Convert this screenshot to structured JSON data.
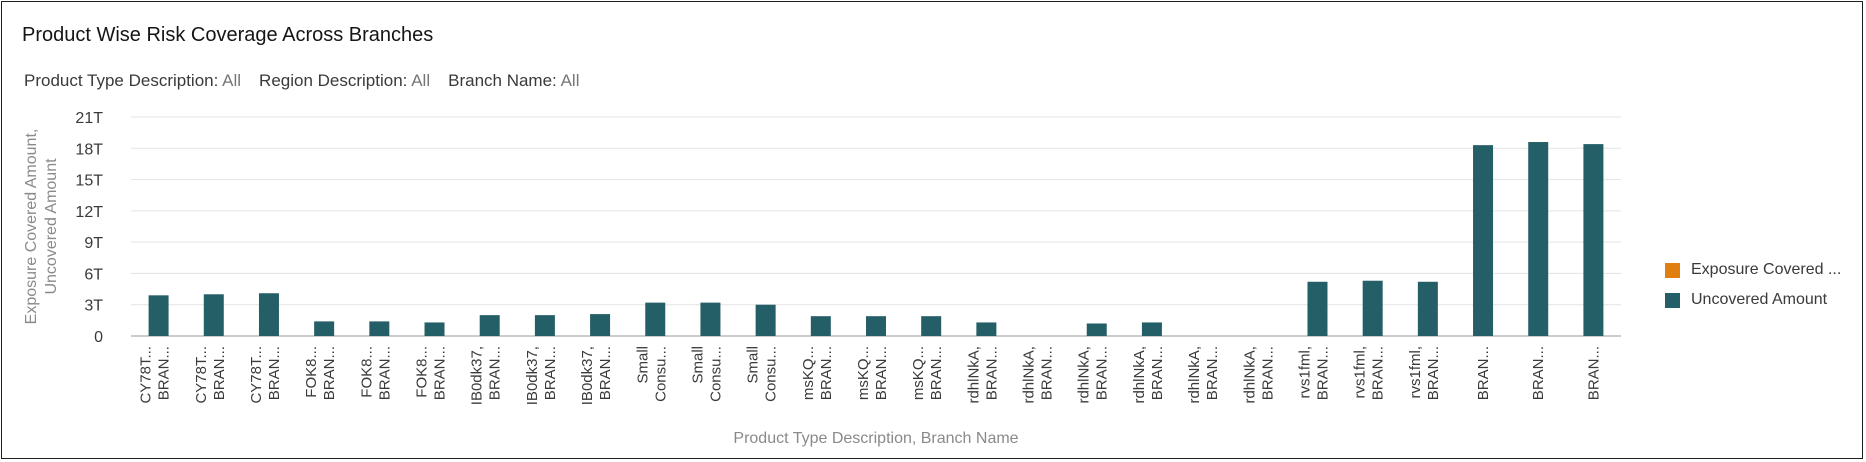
{
  "title": "Product Wise Risk Coverage Across Branches",
  "filters": [
    {
      "label": "Product Type Description:",
      "value": "All"
    },
    {
      "label": "Region Description:",
      "value": "All"
    },
    {
      "label": "Branch Name:",
      "value": "All"
    }
  ],
  "legend": [
    {
      "label": "Exposure Covered ...",
      "color": "#e07f0f"
    },
    {
      "label": "Uncovered Amount",
      "color": "#245e66"
    }
  ],
  "chart_data": {
    "type": "bar",
    "title": "Product Wise Risk Coverage Across Branches",
    "xlabel": "Product Type Description, Branch Name",
    "ylabel": [
      "Exposure Covered Amount,",
      "Uncovered Amount"
    ],
    "ylim": [
      0,
      21
    ],
    "y_ticks": [
      0,
      3,
      6,
      9,
      12,
      15,
      18,
      21
    ],
    "y_tick_labels": [
      "0",
      "3T",
      "6T",
      "9T",
      "12T",
      "15T",
      "18T",
      "21T"
    ],
    "grid": true,
    "legend_position": "right",
    "categories": [
      [
        "CY78T...",
        "BRAN..."
      ],
      [
        "CY78T...",
        "BRAN..."
      ],
      [
        "CY78T...",
        "BRAN..."
      ],
      [
        "FOK8...",
        "BRAN..."
      ],
      [
        "FOK8...",
        "BRAN..."
      ],
      [
        "FOK8...",
        "BRAN..."
      ],
      [
        "IB0dk37,",
        "BRAN..."
      ],
      [
        "IB0dk37,",
        "BRAN..."
      ],
      [
        "IB0dk37,",
        "BRAN..."
      ],
      [
        "Small",
        "Consu..."
      ],
      [
        "Small",
        "Consu..."
      ],
      [
        "Small",
        "Consu..."
      ],
      [
        "msKQ...",
        "BRAN..."
      ],
      [
        "msKQ...",
        "BRAN..."
      ],
      [
        "msKQ...",
        "BRAN..."
      ],
      [
        "rdhlNkA,",
        "BRAN..."
      ],
      [
        "rdhlNkA,",
        "BRAN..."
      ],
      [
        "rdhlNkA,",
        "BRAN..."
      ],
      [
        "rdhlNkA,",
        "BRAN..."
      ],
      [
        "rdhlNkA,",
        "BRAN..."
      ],
      [
        "rdhlNkA,",
        "BRAN..."
      ],
      [
        "rvs1fml,",
        "BRAN..."
      ],
      [
        "rvs1fml,",
        "BRAN..."
      ],
      [
        "rvs1fml,",
        "BRAN..."
      ],
      [
        "BRAN..."
      ],
      [
        "BRAN..."
      ],
      [
        "BRAN..."
      ]
    ],
    "series": [
      {
        "name": "Exposure Covered Amount",
        "color": "#e07f0f",
        "values": [
          0,
          0,
          0,
          0,
          0,
          0,
          0,
          0,
          0,
          0,
          0,
          0,
          0,
          0,
          0,
          0,
          0,
          0,
          0,
          0,
          0,
          0,
          0,
          0,
          0,
          0,
          0
        ]
      },
      {
        "name": "Uncovered Amount",
        "color": "#245e66",
        "values": [
          3.9,
          4.0,
          4.1,
          1.4,
          1.4,
          1.3,
          2.0,
          2.0,
          2.1,
          3.2,
          3.2,
          3.0,
          1.9,
          1.9,
          1.9,
          1.3,
          0,
          1.2,
          1.3,
          0,
          0,
          5.2,
          5.3,
          5.2,
          18.3,
          18.6,
          18.4
        ]
      }
    ]
  }
}
